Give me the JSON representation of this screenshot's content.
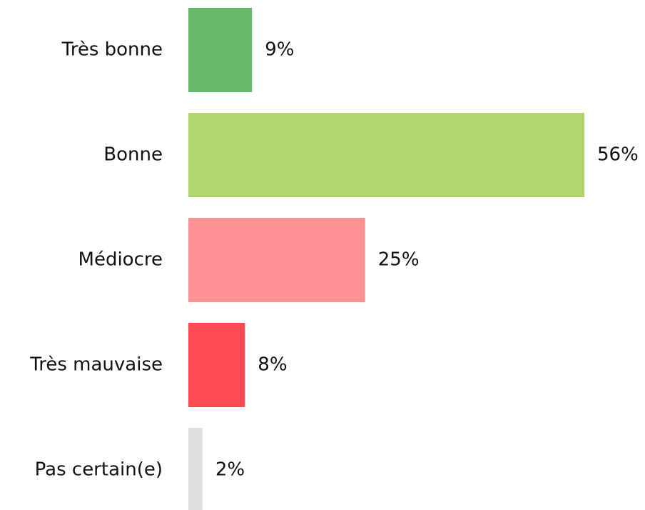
{
  "chart_data": {
    "type": "bar",
    "orientation": "horizontal",
    "categories": [
      "Très bonne",
      "Bonne",
      "Médiocre",
      "Très mauvaise",
      "Pas certain(e)"
    ],
    "values": [
      9,
      56,
      25,
      8,
      2
    ],
    "value_labels": [
      "9%",
      "56%",
      "25%",
      "8%",
      "2%"
    ],
    "colors": [
      "#66b96a",
      "#b0d46e",
      "#ff9194",
      "#ff4b55",
      "#e0e0e0"
    ]
  }
}
